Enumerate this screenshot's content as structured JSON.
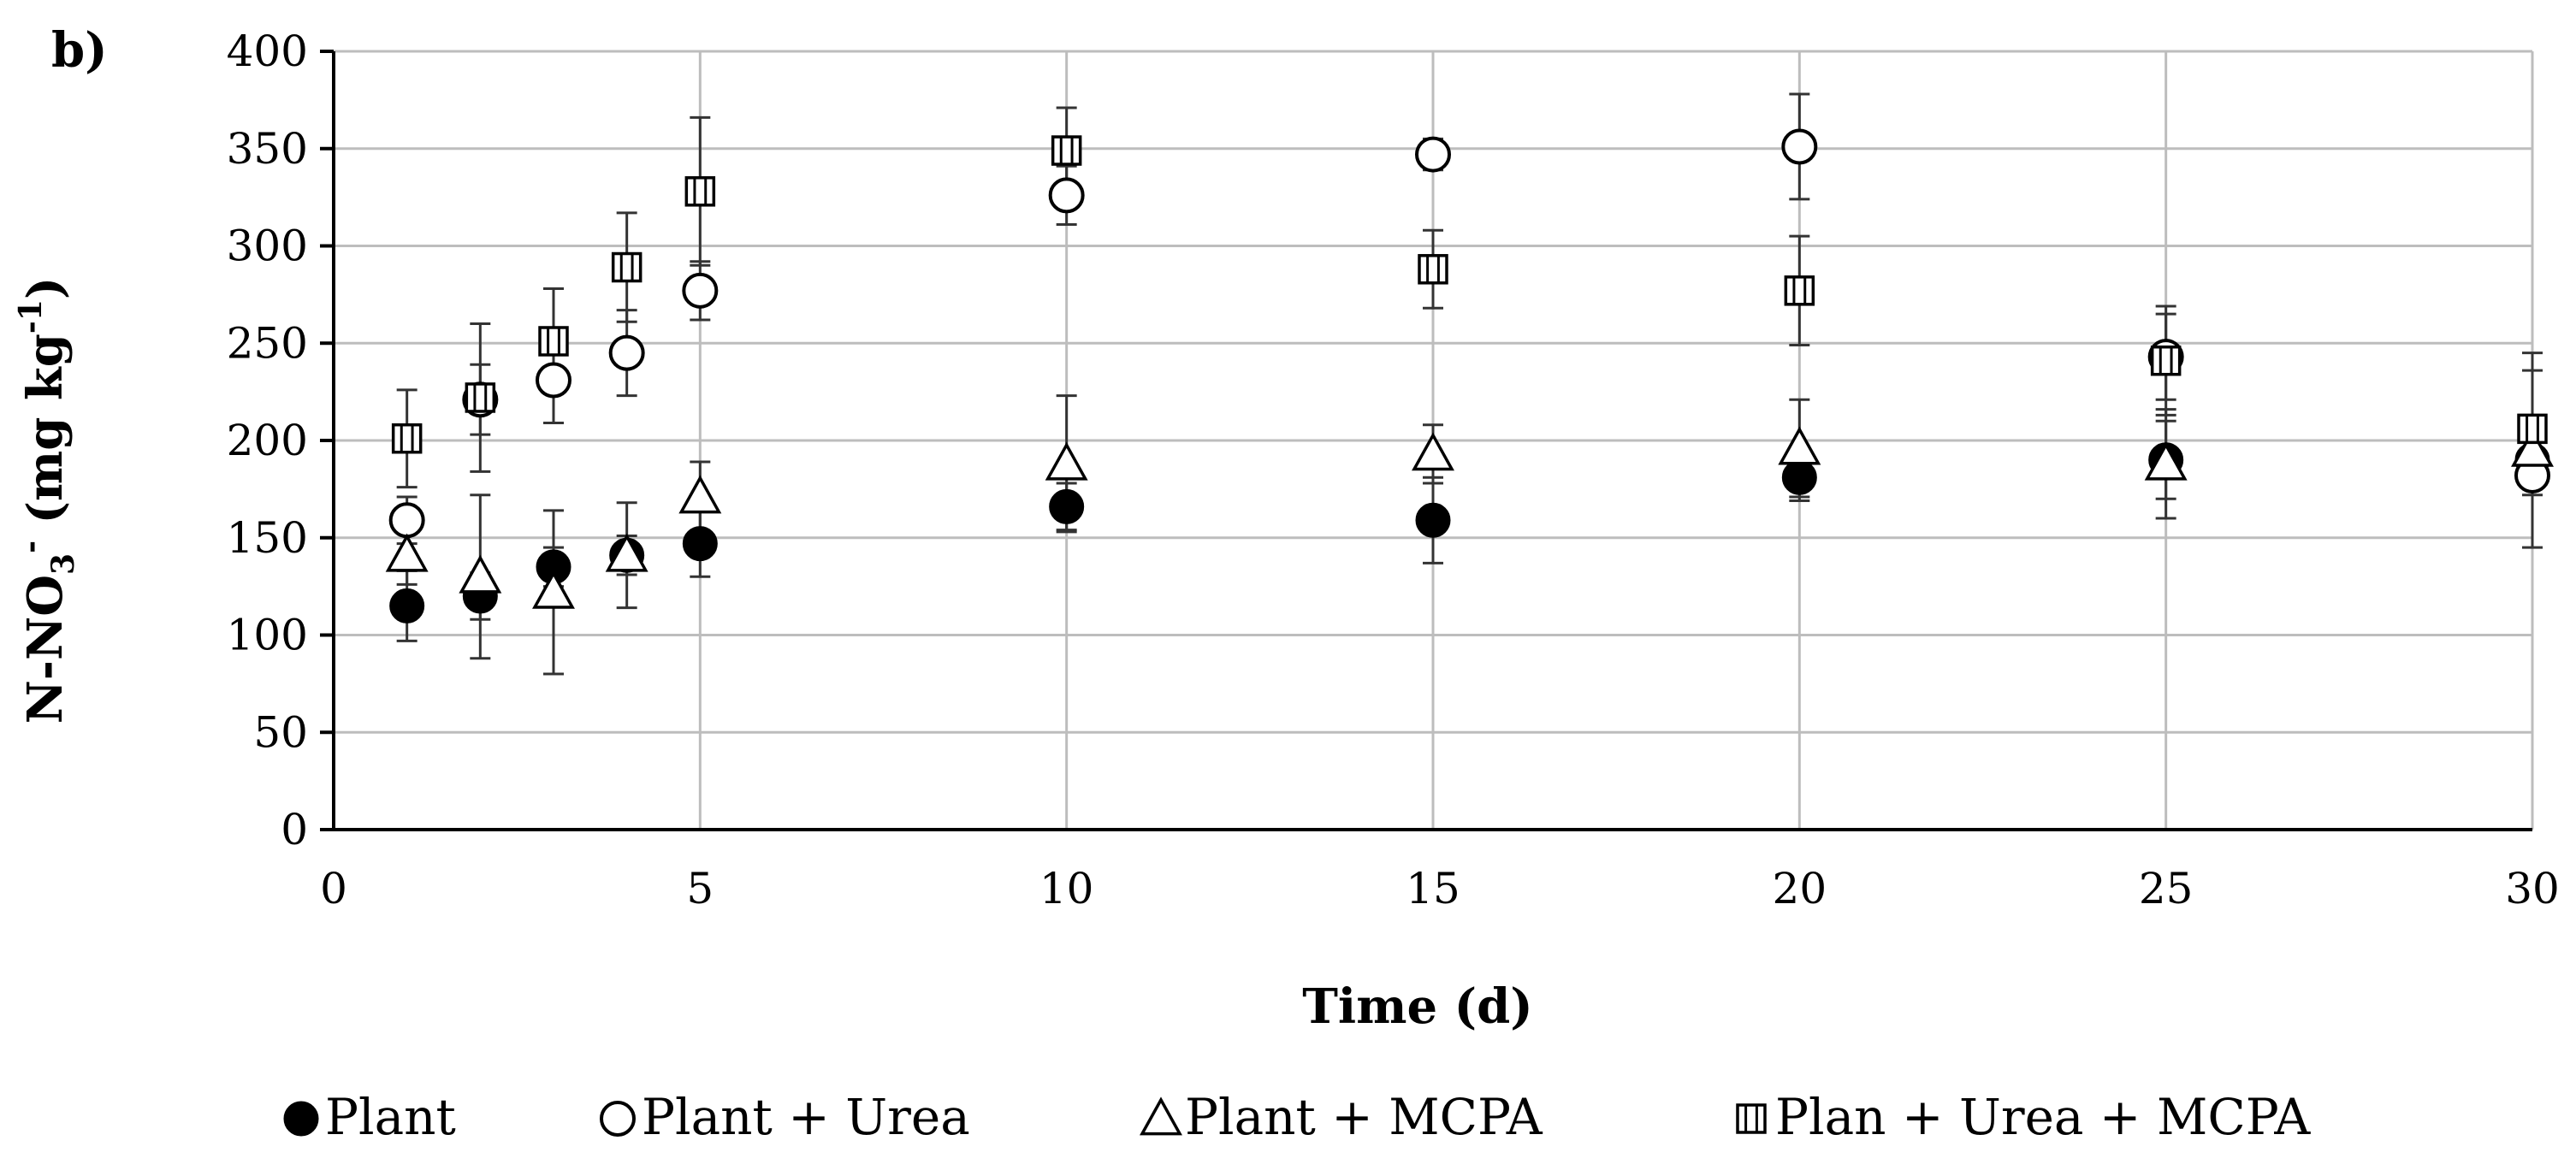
{
  "chart_data": {
    "type": "scatter",
    "panel_label": "b)",
    "title": "",
    "xlabel": "Time (d)",
    "ylabel_parts": [
      "N-NO",
      "3",
      "-",
      " (mg kg",
      "-1",
      ")"
    ],
    "xlim": [
      0,
      30
    ],
    "ylim": [
      0,
      400
    ],
    "xticks": [
      0,
      5,
      10,
      15,
      20,
      25,
      30
    ],
    "yticks": [
      0,
      50,
      100,
      150,
      200,
      250,
      300,
      350,
      400
    ],
    "grid": true,
    "legend_position": "bottom",
    "x": [
      1,
      2,
      3,
      4,
      5,
      10,
      15,
      20,
      25,
      30
    ],
    "series": [
      {
        "name": "Plant",
        "marker": "circle-filled",
        "values": [
          115,
          120,
          135,
          141,
          147,
          166,
          159,
          181,
          190,
          190
        ],
        "errors": [
          18,
          12,
          10,
          10,
          17,
          12,
          22,
          12,
          20,
          10
        ]
      },
      {
        "name": "Plant + Urea",
        "marker": "circle-open",
        "values": [
          159,
          221,
          231,
          245,
          277,
          326,
          347,
          351,
          243,
          182
        ],
        "errors": [
          12,
          18,
          22,
          22,
          15,
          15,
          8,
          27,
          22,
          10
        ]
      },
      {
        "name": "Plant + MCPA",
        "marker": "triangle-open",
        "values": [
          141,
          130,
          122,
          141,
          171,
          188,
          193,
          196,
          188,
          195
        ],
        "errors": [
          15,
          42,
          42,
          27,
          18,
          35,
          15,
          25,
          28,
          50
        ]
      },
      {
        "name": "Plan + Urea + MCPA",
        "marker": "square-open",
        "values": [
          201,
          222,
          251,
          289,
          328,
          349,
          288,
          277,
          241,
          206
        ],
        "errors": [
          25,
          38,
          27,
          28,
          38,
          22,
          20,
          28,
          28,
          30
        ]
      }
    ]
  }
}
